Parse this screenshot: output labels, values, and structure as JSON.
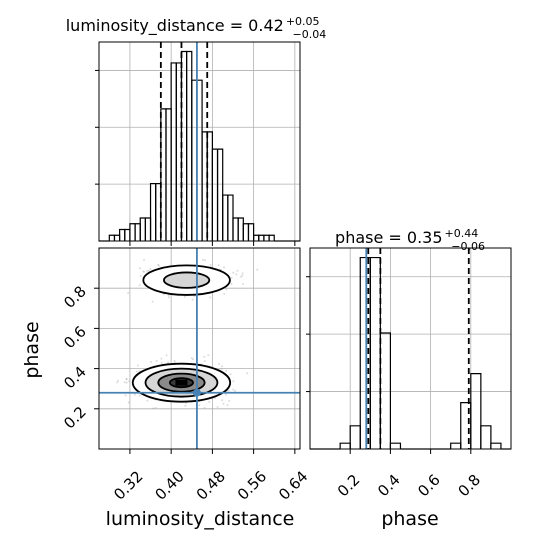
{
  "chart_data": [
    {
      "type": "histogram",
      "panel": "luminosity_distance marginal",
      "title": {
        "prefix": "luminosity_distance = 0.42",
        "upper": "+0.05",
        "lower": "−0.04"
      },
      "xlim": [
        0.26,
        0.65
      ],
      "xticks": [
        0.32,
        0.4,
        0.48,
        0.56,
        0.64
      ],
      "bin_edges": [
        0.26,
        0.27,
        0.28,
        0.29,
        0.3,
        0.31,
        0.32,
        0.33,
        0.34,
        0.35,
        0.36,
        0.37,
        0.38,
        0.39,
        0.4,
        0.41,
        0.42,
        0.43,
        0.44,
        0.45,
        0.46,
        0.47,
        0.48,
        0.49,
        0.5,
        0.51,
        0.52,
        0.53,
        0.54,
        0.55,
        0.56,
        0.57,
        0.58,
        0.59,
        0.6,
        0.61,
        0.62,
        0.63,
        0.64,
        0.65
      ],
      "counts": [
        0,
        0,
        1,
        1,
        2,
        2,
        3,
        3,
        4,
        4,
        10,
        10,
        23,
        23,
        31,
        31,
        33,
        33,
        28,
        28,
        19,
        19,
        16,
        16,
        8,
        8,
        4,
        4,
        3,
        3,
        1,
        1,
        1,
        1,
        0,
        0,
        0,
        0,
        0
      ],
      "quantile_lines": [
        0.38,
        0.42,
        0.47
      ],
      "truth": 0.45,
      "grid": true
    },
    {
      "type": "histogram",
      "panel": "phase marginal",
      "title": {
        "prefix": "phase = 0.35",
        "upper": "+0.44",
        "lower": "−0.06"
      },
      "xlim": [
        0.0,
        1.0
      ],
      "xticks": [
        0.2,
        0.4,
        0.6,
        0.8
      ],
      "xlabel": "phase",
      "bin_edges": [
        0.0,
        0.05,
        0.1,
        0.15,
        0.2,
        0.25,
        0.3,
        0.35,
        0.4,
        0.45,
        0.5,
        0.55,
        0.6,
        0.65,
        0.7,
        0.75,
        0.8,
        0.85,
        0.9,
        0.95,
        1.0
      ],
      "counts": [
        0,
        0,
        0,
        1,
        4,
        33,
        33,
        20,
        1,
        0,
        0,
        0,
        0,
        0,
        1,
        8,
        13,
        4,
        1,
        0
      ],
      "quantile_lines": [
        0.29,
        0.35,
        0.79
      ],
      "truth": 0.28,
      "grid": true
    },
    {
      "type": "scatter_contour",
      "panel": "joint posterior",
      "xlim": [
        0.26,
        0.65
      ],
      "ylim": [
        0.0,
        1.0
      ],
      "xticks": [
        0.32,
        0.4,
        0.48,
        0.56,
        0.64
      ],
      "yticks": [
        0.2,
        0.4,
        0.6,
        0.8
      ],
      "xlabel": "luminosity_distance",
      "ylabel": "phase",
      "modes": [
        {
          "center": [
            0.42,
            0.33
          ],
          "spread": [
            0.045,
            0.045
          ]
        },
        {
          "center": [
            0.43,
            0.84
          ],
          "spread": [
            0.04,
            0.035
          ]
        }
      ],
      "truth": [
        0.45,
        0.28
      ],
      "grid": true
    }
  ],
  "colors": {
    "truth": "#4682b4",
    "lines": "#000000",
    "samples": "#9a9a9a",
    "grid": "#b0b0b0"
  }
}
